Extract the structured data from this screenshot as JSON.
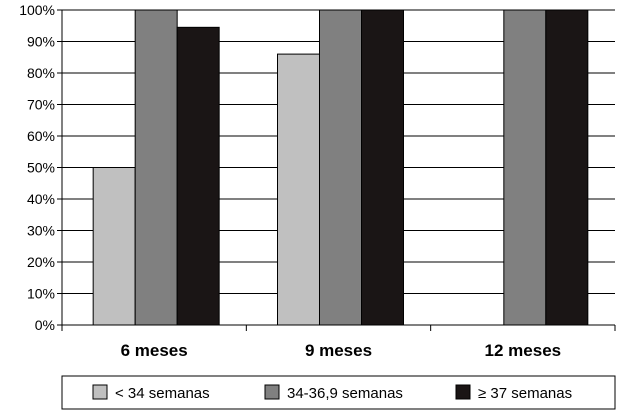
{
  "chart_data": {
    "type": "bar",
    "categories": [
      "6 meses",
      "9 meses",
      "12 meses"
    ],
    "series": [
      {
        "name": "< 34 semanas",
        "values": [
          50,
          86,
          null
        ],
        "color": "#c0c0c0"
      },
      {
        "name": "34-36,9 semanas",
        "values": [
          100,
          100,
          100
        ],
        "color": "#808080"
      },
      {
        "name": "≥ 37 semanas",
        "values": [
          94.5,
          100,
          100
        ],
        "color": "#1a1515"
      }
    ],
    "y_ticks": [
      "0%",
      "10%",
      "20%",
      "30%",
      "40%",
      "50%",
      "60%",
      "70%",
      "80%",
      "90%",
      "100%"
    ],
    "ylim": [
      0,
      100
    ],
    "grid": true,
    "legend_position": "bottom"
  }
}
